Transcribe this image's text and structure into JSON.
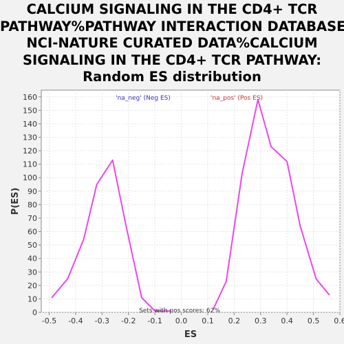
{
  "chart_data": {
    "type": "line",
    "title_lines": [
      "CALCIUM SIGNALING IN THE CD4+ TCR",
      "PATHWAY%PATHWAY INTERACTION DATABASE",
      "NCI-NATURE CURATED DATA%CALCIUM",
      "SIGNALING IN THE CD4+ TCR PATHWAY:",
      "Random ES distribution"
    ],
    "xlabel": "ES",
    "ylabel": "P(ES)",
    "xlim": [
      -0.53,
      0.6
    ],
    "ylim": [
      0,
      165
    ],
    "xticks": [
      "-0.5",
      "-0.4",
      "-0.3",
      "-0.2",
      "-0.1",
      "0.0",
      "0.1",
      "0.2",
      "0.3",
      "0.4",
      "0.5",
      "0.6"
    ],
    "yticks": [
      "0",
      "10",
      "20",
      "30",
      "40",
      "50",
      "60",
      "70",
      "80",
      "90",
      "100",
      "110",
      "120",
      "130",
      "140",
      "150",
      "160"
    ],
    "grid": true,
    "legend": [
      {
        "label": "'na_neg' (Neg ES)",
        "color": "#3333cc"
      },
      {
        "label": "'na_pos' (Pos ES)",
        "color": "#cc3333"
      }
    ],
    "annotation": "Sets with pos scores: 62%",
    "series": [
      {
        "color": "#ee44ee",
        "x": [
          -0.49,
          -0.43,
          -0.37,
          -0.32,
          -0.26,
          -0.21,
          -0.15,
          -0.1,
          -0.04
        ],
        "y": [
          11,
          25,
          54,
          95,
          113,
          65,
          11,
          1,
          1
        ]
      },
      {
        "color": "#ee44ee",
        "x": [
          0.12,
          0.17,
          0.23,
          0.29,
          0.34,
          0.4,
          0.45,
          0.51,
          0.56
        ],
        "y": [
          2,
          23,
          103,
          158,
          123,
          112,
          64,
          25,
          13
        ]
      }
    ]
  }
}
